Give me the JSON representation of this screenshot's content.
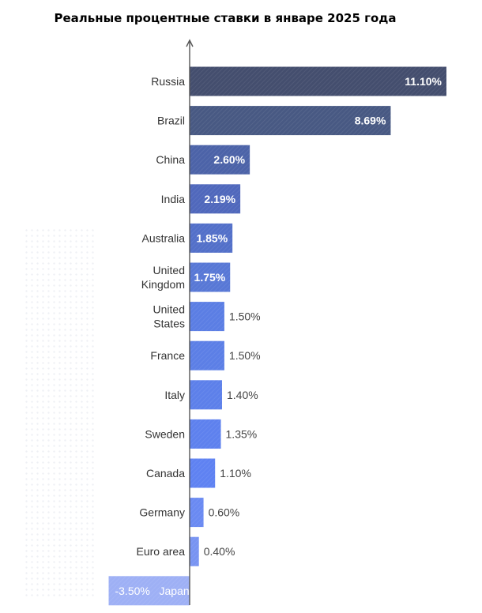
{
  "chart_data": {
    "type": "bar",
    "orientation": "horizontal",
    "title": "Реальные процентные ставки в январе 2025 года",
    "xlabel": "",
    "ylabel": "",
    "categories": [
      "Russia",
      "Brazil",
      "China",
      "India",
      "Australia",
      "United Kingdom",
      "United States",
      "France",
      "Italy",
      "Sweden",
      "Canada",
      "Germany",
      "Euro area",
      "Japan"
    ],
    "category_lines": [
      [
        "Russia"
      ],
      [
        "Brazil"
      ],
      [
        "China"
      ],
      [
        "India"
      ],
      [
        "Australia"
      ],
      [
        "United",
        "Kingdom"
      ],
      [
        "United",
        "States"
      ],
      [
        "France"
      ],
      [
        "Italy"
      ],
      [
        "Sweden"
      ],
      [
        "Canada"
      ],
      [
        "Germany"
      ],
      [
        "Euro area"
      ],
      [
        "Japan"
      ]
    ],
    "values": [
      11.1,
      8.69,
      2.6,
      2.19,
      1.85,
      1.75,
      1.5,
      1.5,
      1.4,
      1.35,
      1.1,
      0.6,
      0.4,
      -3.5
    ],
    "value_labels": [
      "11.10%",
      "8.69%",
      "2.60%",
      "2.19%",
      "1.85%",
      "1.75%",
      "1.50%",
      "1.50%",
      "1.40%",
      "1.35%",
      "1.10%",
      "0.60%",
      "0.40%",
      "-3.50%"
    ],
    "label_inside": [
      true,
      true,
      true,
      true,
      true,
      true,
      false,
      false,
      false,
      false,
      false,
      false,
      false,
      true
    ],
    "colors": [
      "#444e6e",
      "#485983",
      "#4c63a8",
      "#5068bc",
      "#5370c9",
      "#5878d6",
      "#5b7ee4",
      "#5c7fe6",
      "#5d80ea",
      "#5e81ee",
      "#5f82f2",
      "#6a8af2",
      "#7894f2",
      "#9eb0f5"
    ],
    "xlim": [
      -3.5,
      11.1
    ],
    "grid": false,
    "legend": "none"
  }
}
